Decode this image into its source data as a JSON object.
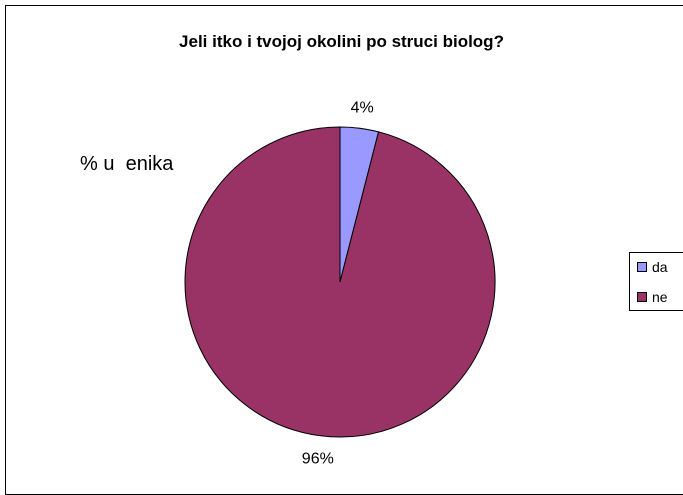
{
  "chart_data": {
    "type": "pie",
    "title": "Jeli itko i tvojoj okolini po struci biolog?",
    "series_label": "% u  enika",
    "categories": [
      "da",
      "ne"
    ],
    "values": [
      4,
      96
    ],
    "data_labels": [
      "4%",
      "96%"
    ],
    "colors": [
      "#9999FF",
      "#993366"
    ],
    "legend_position": "right"
  }
}
